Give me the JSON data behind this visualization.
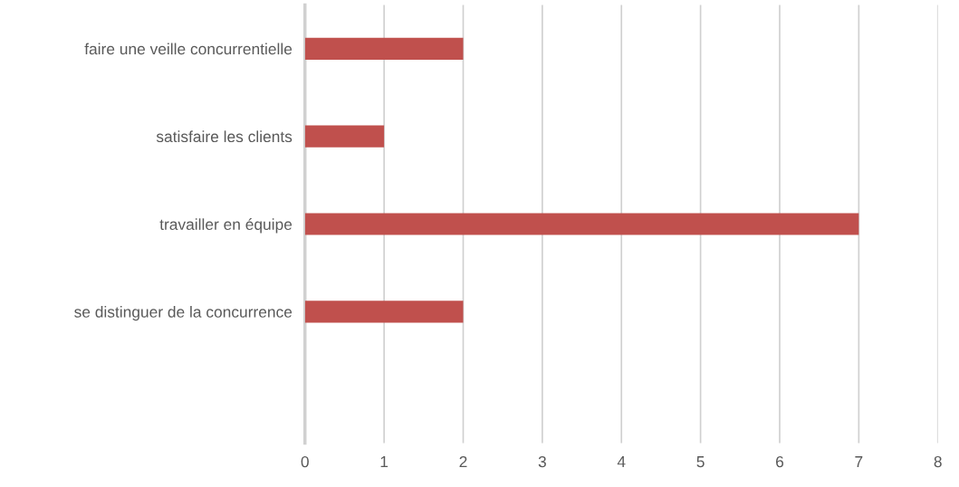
{
  "chart_data": {
    "type": "bar",
    "orientation": "horizontal",
    "categories": [
      "faire une veille concurrentielle",
      "satisfaire les clients",
      "travailler en équipe",
      "se distinguer de la concurrence",
      null
    ],
    "values": [
      2,
      1,
      7,
      2,
      null
    ],
    "color": "#c0504d",
    "xlim": [
      0,
      8
    ],
    "xticks": [
      0,
      1,
      2,
      3,
      4,
      5,
      6,
      7,
      8
    ],
    "grid": "x",
    "legend": false
  }
}
